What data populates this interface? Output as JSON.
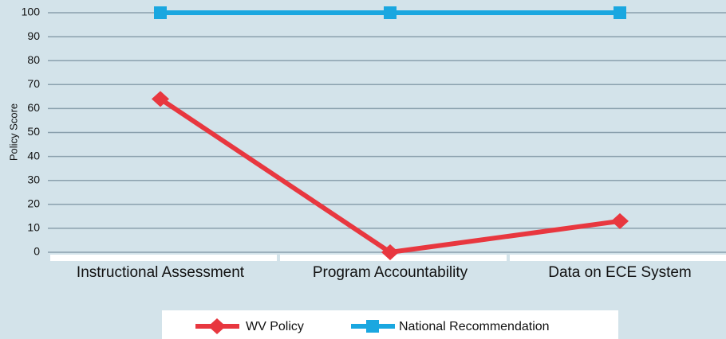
{
  "chart_data": {
    "type": "line",
    "ylabel": "Policy Score",
    "categories": [
      "Instructional Assessment",
      "Program Accountability",
      "Data on ECE System"
    ],
    "series": [
      {
        "name": "WV Policy",
        "color": "#e8373f",
        "marker": "diamond",
        "values": [
          64,
          0,
          13
        ]
      },
      {
        "name": "National Recommendation",
        "color": "#1aa7e0",
        "marker": "square",
        "values": [
          100,
          100,
          100
        ]
      }
    ],
    "ylim": [
      0,
      100
    ],
    "yticks": [
      0,
      10,
      20,
      30,
      40,
      50,
      60,
      70,
      80,
      90,
      100
    ],
    "grid": true,
    "legend": "bottom"
  }
}
